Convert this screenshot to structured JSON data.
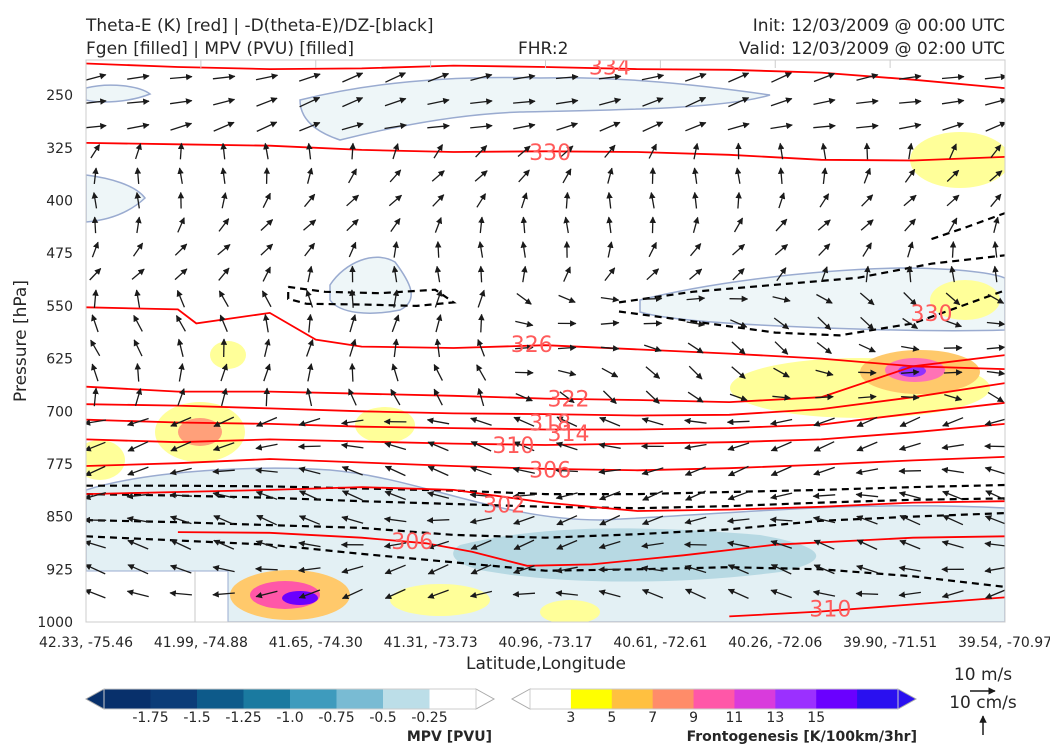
{
  "header": {
    "title_left_1": "Theta-E (K) [red] | -D(theta-E)/DZ-[black]",
    "title_left_2": "Fgen [filled] | MPV (PVU) [filled]",
    "fhr": "FHR:2",
    "init": "Init: 12/03/2009 @ 00:00 UTC",
    "valid": "Valid: 12/03/2009 @ 02:00 UTC"
  },
  "colors": {
    "theta_e": "#ff0000",
    "theta_e_label": "#ff5a5a",
    "dthetae_dz": "#000000",
    "mpv_outline": "#9aabd0",
    "wind_vector": "#1a1a1a"
  },
  "chart_data": {
    "type": "cross-section",
    "xlabel": "Latitude,Longitude",
    "ylabel": "Pressure [hPa]",
    "x_ticks": [
      "42.33, -75.46",
      "41.99, -74.88",
      "41.65, -74.30",
      "41.31, -73.73",
      "40.96, -73.17",
      "40.61, -72.61",
      "40.26, -72.06",
      "39.90, -71.51",
      "39.54, -70.97"
    ],
    "y_ticks": [
      250,
      325,
      400,
      475,
      550,
      625,
      700,
      775,
      850,
      925,
      1000
    ],
    "ylim": [
      1000,
      200
    ],
    "y_inverted": true,
    "theta_e_contour_labels": [
      {
        "value": "334",
        "x": 5.7,
        "p": 209
      },
      {
        "value": "330",
        "x": 5.05,
        "p": 331
      },
      {
        "value": "326",
        "x": 4.85,
        "p": 604
      },
      {
        "value": "322",
        "x": 5.25,
        "p": 682
      },
      {
        "value": "318",
        "x": 5.05,
        "p": 716
      },
      {
        "value": "314",
        "x": 5.25,
        "p": 731
      },
      {
        "value": "310",
        "x": 4.65,
        "p": 748
      },
      {
        "value": "306",
        "x": 5.05,
        "p": 783
      },
      {
        "value": "302",
        "x": 4.55,
        "p": 833
      },
      {
        "value": "306",
        "x": 3.55,
        "p": 885
      },
      {
        "value": "310",
        "x": 8.1,
        "p": 981
      },
      {
        "value": "330",
        "x": 9.2,
        "p": 560
      }
    ],
    "theta_e_lines": [
      {
        "level": 334,
        "points": [
          [
            0,
            205
          ],
          [
            1,
            210
          ],
          [
            2,
            213
          ],
          [
            3,
            212
          ],
          [
            4,
            208
          ],
          [
            5,
            210
          ],
          [
            6,
            213
          ],
          [
            7,
            214
          ],
          [
            8,
            218
          ],
          [
            9,
            228
          ],
          [
            10,
            240
          ]
        ]
      },
      {
        "level": 330,
        "points": [
          [
            0,
            318
          ],
          [
            1,
            320
          ],
          [
            2,
            322
          ],
          [
            3,
            328
          ],
          [
            4,
            331
          ],
          [
            5,
            330
          ],
          [
            6,
            331
          ],
          [
            7,
            335
          ],
          [
            8,
            342
          ],
          [
            9,
            343
          ],
          [
            10,
            338
          ]
        ]
      },
      {
        "level": 326,
        "points": [
          [
            0,
            552
          ],
          [
            1,
            555
          ],
          [
            1.2,
            575
          ],
          [
            2,
            560
          ],
          [
            2.5,
            598
          ],
          [
            3,
            608
          ],
          [
            4,
            610
          ],
          [
            5,
            606
          ],
          [
            6,
            612
          ],
          [
            7,
            618
          ],
          [
            8,
            625
          ],
          [
            9,
            636
          ],
          [
            10,
            640
          ]
        ]
      },
      {
        "level": 322,
        "points": [
          [
            0,
            665
          ],
          [
            1,
            672
          ],
          [
            2,
            672
          ],
          [
            3,
            675
          ],
          [
            4,
            678
          ],
          [
            5,
            682
          ],
          [
            6,
            684
          ],
          [
            7,
            687
          ],
          [
            8,
            680
          ],
          [
            9,
            636
          ],
          [
            10,
            620
          ]
        ]
      },
      {
        "level": 318,
        "points": [
          [
            0,
            690
          ],
          [
            1,
            692
          ],
          [
            2,
            696
          ],
          [
            3,
            700
          ],
          [
            4,
            703
          ],
          [
            5,
            704
          ],
          [
            6,
            706
          ],
          [
            7,
            705
          ],
          [
            8,
            697
          ],
          [
            9,
            680
          ],
          [
            10,
            660
          ]
        ]
      },
      {
        "level": 314,
        "points": [
          [
            0,
            712
          ],
          [
            1,
            716
          ],
          [
            2,
            718
          ],
          [
            3,
            722
          ],
          [
            4,
            724
          ],
          [
            5,
            726
          ],
          [
            6,
            726
          ],
          [
            7,
            724
          ],
          [
            8,
            719
          ],
          [
            9,
            703
          ],
          [
            10,
            688
          ]
        ]
      },
      {
        "level": 310,
        "points": [
          [
            0,
            740
          ],
          [
            1,
            744
          ],
          [
            2,
            740
          ],
          [
            3,
            743
          ],
          [
            4,
            746
          ],
          [
            5,
            748
          ],
          [
            6,
            746
          ],
          [
            7,
            744
          ],
          [
            8,
            740
          ],
          [
            9,
            730
          ],
          [
            10,
            718
          ]
        ]
      },
      {
        "level": 306,
        "points": [
          [
            0,
            778
          ],
          [
            1,
            774
          ],
          [
            2,
            768
          ],
          [
            3,
            773
          ],
          [
            4,
            778
          ],
          [
            5,
            782
          ],
          [
            6,
            784
          ],
          [
            7,
            781
          ],
          [
            8,
            776
          ],
          [
            9,
            770
          ],
          [
            10,
            765
          ]
        ]
      },
      {
        "level": 302,
        "points": [
          [
            0,
            818
          ],
          [
            1,
            815
          ],
          [
            2,
            812
          ],
          [
            3,
            808
          ],
          [
            4,
            812
          ],
          [
            5,
            830
          ],
          [
            6,
            842
          ],
          [
            7,
            840
          ],
          [
            8,
            836
          ],
          [
            9,
            830
          ],
          [
            10,
            828
          ]
        ]
      },
      {
        "level": 306,
        "points": [
          [
            1,
            872
          ],
          [
            2,
            873
          ],
          [
            3,
            880
          ],
          [
            3.7,
            888
          ],
          [
            4.2,
            900
          ],
          [
            4.8,
            920
          ],
          [
            5.5,
            918
          ],
          [
            6.5,
            905
          ],
          [
            7.5,
            890
          ],
          [
            9,
            880
          ],
          [
            10,
            878
          ]
        ]
      },
      {
        "level": 310,
        "points": [
          [
            7,
            992
          ],
          [
            8,
            985
          ],
          [
            9,
            975
          ],
          [
            10,
            965
          ]
        ]
      }
    ],
    "dthetae_dz_lines": [
      {
        "points": [
          [
            0,
            806
          ],
          [
            1,
            806
          ],
          [
            2,
            807
          ],
          [
            3,
            810
          ],
          [
            4,
            813
          ],
          [
            5,
            818
          ],
          [
            6,
            818
          ],
          [
            7,
            815
          ],
          [
            8,
            812
          ],
          [
            9,
            808
          ],
          [
            10,
            805
          ]
        ]
      },
      {
        "points": [
          [
            0,
            818
          ],
          [
            1,
            820
          ],
          [
            2,
            823
          ],
          [
            3,
            828
          ],
          [
            4,
            832
          ],
          [
            5,
            836
          ],
          [
            6,
            838
          ],
          [
            7,
            835
          ],
          [
            8,
            830
          ],
          [
            9,
            826
          ],
          [
            10,
            824
          ]
        ]
      },
      {
        "points": [
          [
            0,
            855
          ],
          [
            1,
            858
          ],
          [
            2,
            862
          ],
          [
            3,
            866
          ],
          [
            4,
            876
          ],
          [
            5,
            880
          ],
          [
            6,
            875
          ],
          [
            7,
            868
          ],
          [
            8,
            856
          ],
          [
            9,
            850
          ],
          [
            10,
            845
          ]
        ]
      },
      {
        "points": [
          [
            0,
            878
          ],
          [
            1,
            884
          ],
          [
            2,
            890
          ],
          [
            3,
            903
          ],
          [
            4,
            915
          ],
          [
            5,
            927
          ],
          [
            6,
            925
          ],
          [
            7,
            922
          ],
          [
            8,
            925
          ],
          [
            9,
            935
          ],
          [
            10,
            950
          ]
        ]
      },
      {
        "points": [
          [
            2.2,
            523
          ],
          [
            2.6,
            530
          ],
          [
            3.2,
            532
          ],
          [
            3.8,
            527
          ],
          [
            4,
            545
          ],
          [
            3.6,
            550
          ],
          [
            3.0,
            548
          ],
          [
            2.4,
            547
          ],
          [
            2.2,
            540
          ],
          [
            2.2,
            523
          ]
        ]
      },
      {
        "points": [
          [
            5.8,
            545
          ],
          [
            6.6,
            530
          ],
          [
            7.5,
            520
          ],
          [
            8.4,
            510
          ],
          [
            9.2,
            490
          ],
          [
            10,
            478
          ]
        ]
      },
      {
        "points": [
          [
            5.8,
            558
          ],
          [
            6.6,
            572
          ],
          [
            7.5,
            588
          ],
          [
            8.2,
            592
          ],
          [
            9,
            575
          ],
          [
            10,
            528
          ]
        ]
      },
      {
        "points": [
          [
            9.2,
            455
          ],
          [
            9.6,
            437
          ],
          [
            10,
            418
          ]
        ]
      }
    ],
    "mpv_colorbar": {
      "label": "MPV [PVU]",
      "tick_labels": [
        "-1.75",
        "-1.5",
        "-1.25",
        "-1.0",
        "-0.75",
        "-0.5",
        "-0.25"
      ],
      "colors": [
        "#08306b",
        "#0b3c78",
        "#0d5a8a",
        "#1a7aa0",
        "#3e9bbd",
        "#79bbd3",
        "#bcdee8",
        "#ffffff"
      ]
    },
    "fgen_colorbar": {
      "label": "Frontogenesis [K/100km/3hr]",
      "tick_labels": [
        "3",
        "5",
        "7",
        "9",
        "11",
        "13",
        "15"
      ],
      "colors": [
        "#ffffff",
        "#ffff00",
        "#ffc040",
        "#ff8c69",
        "#ff57a8",
        "#d93bdc",
        "#9b30ff",
        "#6a00ff",
        "#2a10f0"
      ]
    },
    "wind_key": {
      "horizontal": "10 m/s",
      "vertical": "10 cm/s"
    },
    "grid": false,
    "legend": "bottom colorbars"
  }
}
